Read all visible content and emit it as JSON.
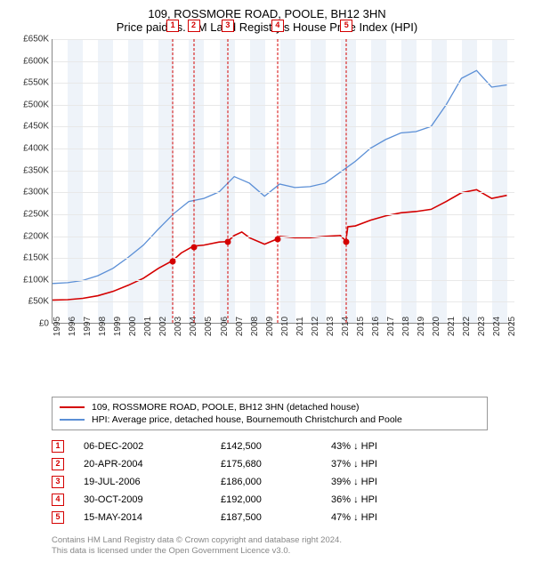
{
  "title_line1": "109, ROSSMORE ROAD, POOLE, BH12 3HN",
  "title_line2": "Price paid vs. HM Land Registry's House Price Index (HPI)",
  "chart": {
    "type": "line",
    "xlim": [
      1995,
      2025.5
    ],
    "ylim": [
      0,
      650000
    ],
    "ytick_step": 50000,
    "ytick_prefix": "£",
    "ytick_suffix": "K",
    "x_years": [
      1995,
      1996,
      1997,
      1998,
      1999,
      2000,
      2001,
      2002,
      2003,
      2004,
      2005,
      2006,
      2007,
      2008,
      2009,
      2010,
      2011,
      2012,
      2013,
      2014,
      2015,
      2016,
      2017,
      2018,
      2019,
      2020,
      2021,
      2022,
      2023,
      2024,
      2025
    ],
    "grid_color": "#e8e8e8",
    "band_color": "#eef3f9",
    "background_color": "#ffffff",
    "series": [
      {
        "name": "hpi",
        "label": "HPI: Average price, detached house, Bournemouth Christchurch and Poole",
        "color": "#5b8fd6",
        "width": 1.3,
        "points": [
          [
            1995,
            90000
          ],
          [
            1996,
            92000
          ],
          [
            1997,
            97000
          ],
          [
            1998,
            108000
          ],
          [
            1999,
            125000
          ],
          [
            2000,
            150000
          ],
          [
            2001,
            178000
          ],
          [
            2002,
            215000
          ],
          [
            2003,
            250000
          ],
          [
            2004,
            278000
          ],
          [
            2005,
            285000
          ],
          [
            2006,
            300000
          ],
          [
            2007,
            335000
          ],
          [
            2008,
            320000
          ],
          [
            2009,
            290000
          ],
          [
            2010,
            318000
          ],
          [
            2011,
            310000
          ],
          [
            2012,
            312000
          ],
          [
            2013,
            320000
          ],
          [
            2014,
            345000
          ],
          [
            2015,
            370000
          ],
          [
            2016,
            400000
          ],
          [
            2017,
            420000
          ],
          [
            2018,
            435000
          ],
          [
            2019,
            438000
          ],
          [
            2020,
            450000
          ],
          [
            2021,
            500000
          ],
          [
            2022,
            560000
          ],
          [
            2023,
            578000
          ],
          [
            2024,
            540000
          ],
          [
            2025,
            545000
          ]
        ]
      },
      {
        "name": "property",
        "label": "109, ROSSMORE ROAD, POOLE, BH12 3HN (detached house)",
        "color": "#d40000",
        "width": 1.6,
        "points": [
          [
            1995,
            52000
          ],
          [
            1996,
            53000
          ],
          [
            1997,
            56000
          ],
          [
            1998,
            62000
          ],
          [
            1999,
            72000
          ],
          [
            2000,
            86000
          ],
          [
            2001,
            102000
          ],
          [
            2002,
            125000
          ],
          [
            2002.93,
            142500
          ],
          [
            2003.5,
            160000
          ],
          [
            2004.3,
            175680
          ],
          [
            2005,
            178000
          ],
          [
            2006,
            185000
          ],
          [
            2006.55,
            186000
          ],
          [
            2007,
            200000
          ],
          [
            2007.5,
            208000
          ],
          [
            2008,
            195000
          ],
          [
            2009,
            180000
          ],
          [
            2009.83,
            192000
          ],
          [
            2010,
            198000
          ],
          [
            2011,
            195000
          ],
          [
            2012,
            195000
          ],
          [
            2013,
            198000
          ],
          [
            2014,
            200000
          ],
          [
            2014.37,
            187500
          ],
          [
            2014.5,
            220000
          ],
          [
            2015,
            222000
          ],
          [
            2016,
            235000
          ],
          [
            2017,
            245000
          ],
          [
            2018,
            252000
          ],
          [
            2019,
            255000
          ],
          [
            2020,
            260000
          ],
          [
            2021,
            278000
          ],
          [
            2022,
            298000
          ],
          [
            2023,
            305000
          ],
          [
            2024,
            285000
          ],
          [
            2025,
            292000
          ]
        ]
      }
    ],
    "transactions": [
      {
        "n": 1,
        "year": 2002.93,
        "price": 142500,
        "date": "06-DEC-2002",
        "price_label": "£142,500",
        "diff": "43% ↓ HPI",
        "color": "#d40000"
      },
      {
        "n": 2,
        "year": 2004.3,
        "price": 175680,
        "date": "20-APR-2004",
        "price_label": "£175,680",
        "diff": "37% ↓ HPI",
        "color": "#d40000"
      },
      {
        "n": 3,
        "year": 2006.55,
        "price": 186000,
        "date": "19-JUL-2006",
        "price_label": "£186,000",
        "diff": "39% ↓ HPI",
        "color": "#d40000"
      },
      {
        "n": 4,
        "year": 2009.83,
        "price": 192000,
        "date": "30-OCT-2009",
        "price_label": "£192,000",
        "diff": "36% ↓ HPI",
        "color": "#d40000"
      },
      {
        "n": 5,
        "year": 2014.37,
        "price": 187500,
        "date": "15-MAY-2014",
        "price_label": "£187,500",
        "diff": "47% ↓ HPI",
        "color": "#d40000"
      }
    ]
  },
  "footer_line1": "Contains HM Land Registry data © Crown copyright and database right 2024.",
  "footer_line2": "This data is licensed under the Open Government Licence v3.0."
}
